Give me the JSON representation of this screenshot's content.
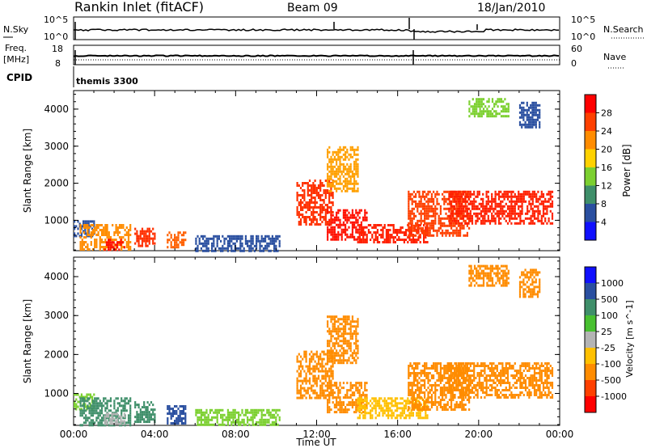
{
  "header": {
    "station": "Rankin Inlet (fitACF)",
    "beam": "Beam 09",
    "date": "18/Jan/2010"
  },
  "top_panels": {
    "nsky_label": "N.Sky",
    "nsky_ticks": [
      "10^5",
      "10^0"
    ],
    "nsearch_label": "N.Search",
    "nsearch_ticks": [
      "10^5",
      "10^0"
    ],
    "freq_label": "Freq.",
    "freq_unit": "[MHz]",
    "freq_ticks": [
      "18",
      "8"
    ],
    "nave_label": "Nave",
    "nave_ticks": [
      "60",
      "0"
    ],
    "cpid_label": "CPID",
    "cpid_value": "themis 3300"
  },
  "chart_data": [
    {
      "type": "heatmap",
      "name": "power-panel",
      "ylabel": "Slant Range [km]",
      "xlabel": "Time UT",
      "xlim": [
        0,
        24
      ],
      "ylim": [
        180,
        4500
      ],
      "yticks": [
        1000,
        2000,
        3000,
        4000
      ],
      "colorbar_label": "Power [dB]",
      "colorbar_ticks": [
        "28",
        "24",
        "20",
        "16",
        "12",
        "8",
        "4"
      ],
      "colorbar_colors": [
        "#ff0000",
        "#ff4000",
        "#ff8c00",
        "#ffd200",
        "#7cd030",
        "#3f8f6a",
        "#2a4fa0",
        "#1010ff"
      ],
      "echo_regions": [
        {
          "t": [
            0.0,
            1.0
          ],
          "r": [
            600,
            1000
          ],
          "color": "#2a4fa0"
        },
        {
          "t": [
            0.3,
            2.8
          ],
          "r": [
            200,
            900
          ],
          "color": "#ff8c00"
        },
        {
          "t": [
            1.5,
            2.5
          ],
          "r": [
            200,
            500
          ],
          "color": "#ff1000"
        },
        {
          "t": [
            3.0,
            4.0
          ],
          "r": [
            300,
            800
          ],
          "color": "#ff3000"
        },
        {
          "t": [
            4.6,
            5.5
          ],
          "r": [
            250,
            700
          ],
          "color": "#ff6000"
        },
        {
          "t": [
            6.0,
            10.2
          ],
          "r": [
            200,
            600
          ],
          "color": "#2a4fa0"
        },
        {
          "t": [
            11.0,
            12.8
          ],
          "r": [
            900,
            2100
          ],
          "color": "#ff3000"
        },
        {
          "t": [
            12.5,
            14.5
          ],
          "r": [
            500,
            1300
          ],
          "color": "#ff1000"
        },
        {
          "t": [
            14.0,
            17.5
          ],
          "r": [
            400,
            900
          ],
          "color": "#ff2000"
        },
        {
          "t": [
            16.5,
            19.5
          ],
          "r": [
            600,
            1800
          ],
          "color": "#ff4000"
        },
        {
          "t": [
            18.5,
            23.6
          ],
          "r": [
            900,
            1800
          ],
          "color": "#ff2000"
        },
        {
          "t": [
            12.5,
            14.0
          ],
          "r": [
            1800,
            3000
          ],
          "color": "#ffa000"
        },
        {
          "t": [
            19.5,
            21.5
          ],
          "r": [
            3800,
            4300
          ],
          "color": "#7cd030"
        },
        {
          "t": [
            22.0,
            23.0
          ],
          "r": [
            3500,
            4200
          ],
          "color": "#2a4fa0"
        }
      ]
    },
    {
      "type": "heatmap",
      "name": "velocity-panel",
      "ylabel": "Slant Range [km]",
      "xlabel": "Time UT",
      "xlim": [
        0,
        24
      ],
      "ylim": [
        180,
        4500
      ],
      "yticks": [
        1000,
        2000,
        3000,
        4000
      ],
      "colorbar_label": "Velocity [m s^-1]",
      "colorbar_ticks": [
        "1000",
        "500",
        "100",
        "25",
        "-25",
        "-100",
        "-500",
        "-1000"
      ],
      "colorbar_colors": [
        "#1010ff",
        "#2a4fa0",
        "#3f8f6a",
        "#48c030",
        "#b4b4b4",
        "#ffc000",
        "#ff8c00",
        "#ff4000",
        "#ff0000"
      ],
      "echo_regions": [
        {
          "t": [
            0.0,
            1.0
          ],
          "r": [
            600,
            1000
          ],
          "color": "#7cd030"
        },
        {
          "t": [
            0.3,
            2.8
          ],
          "r": [
            200,
            900
          ],
          "color": "#3f8f6a"
        },
        {
          "t": [
            1.5,
            2.5
          ],
          "r": [
            200,
            500
          ],
          "color": "#b4b4b4"
        },
        {
          "t": [
            3.0,
            4.0
          ],
          "r": [
            300,
            800
          ],
          "color": "#3f8f6a"
        },
        {
          "t": [
            4.6,
            5.5
          ],
          "r": [
            250,
            700
          ],
          "color": "#2a4fa0"
        },
        {
          "t": [
            6.0,
            10.2
          ],
          "r": [
            200,
            600
          ],
          "color": "#7cd030"
        },
        {
          "t": [
            11.0,
            12.8
          ],
          "r": [
            900,
            2100
          ],
          "color": "#ff8c00"
        },
        {
          "t": [
            12.5,
            14.5
          ],
          "r": [
            500,
            1300
          ],
          "color": "#ff8c00"
        },
        {
          "t": [
            14.0,
            17.5
          ],
          "r": [
            400,
            900
          ],
          "color": "#ffc000"
        },
        {
          "t": [
            16.5,
            19.5
          ],
          "r": [
            600,
            1800
          ],
          "color": "#ff8c00"
        },
        {
          "t": [
            18.5,
            23.6
          ],
          "r": [
            900,
            1800
          ],
          "color": "#ff8c00"
        },
        {
          "t": [
            12.5,
            14.0
          ],
          "r": [
            1800,
            3000
          ],
          "color": "#ff8c00"
        },
        {
          "t": [
            19.5,
            21.5
          ],
          "r": [
            3800,
            4300
          ],
          "color": "#ff8c00"
        },
        {
          "t": [
            22.0,
            23.0
          ],
          "r": [
            3500,
            4200
          ],
          "color": "#ff8c00"
        }
      ]
    }
  ],
  "x_axis": {
    "ticks": [
      "00:00",
      "04:00",
      "08:00",
      "12:00",
      "16:00",
      "20:00",
      "00:00"
    ],
    "label": "Time UT"
  }
}
